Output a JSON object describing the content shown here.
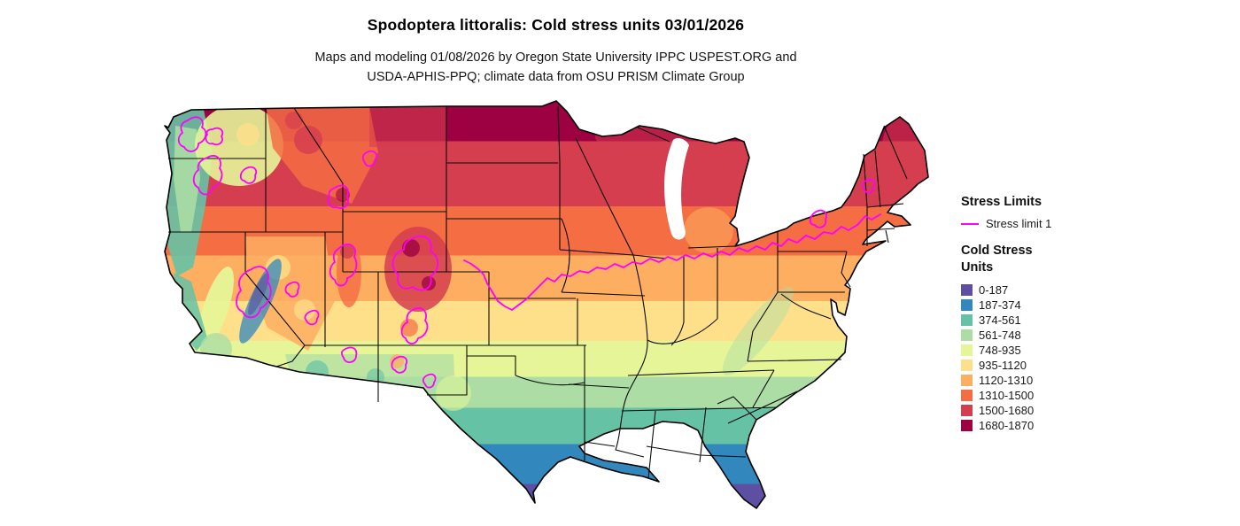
{
  "title": "Spodoptera littoralis: Cold stress units 03/01/2026",
  "subtitle": {
    "lines": [
      "Maps and modeling 01/08/2026 by Oregon State University IPPC USPEST.ORG and",
      "USDA-APHIS-PPQ; climate data from OSU PRISM Climate Group"
    ]
  },
  "map": {
    "region": "Continental United States",
    "kind": "raster map of accumulated cold stress units with state boundaries",
    "contour_color": "#ff00ff"
  },
  "legend": {
    "stress_limits": {
      "heading": "Stress Limits",
      "items": [
        {
          "label": "Stress limit 1",
          "color": "#ff00ff"
        }
      ]
    },
    "cold_stress_units": {
      "heading": "Cold Stress Units",
      "classes": [
        {
          "range": "0-187",
          "color": "#5e4fa2"
        },
        {
          "range": "187-374",
          "color": "#3288bd"
        },
        {
          "range": "374-561",
          "color": "#66c2a5"
        },
        {
          "range": "561-748",
          "color": "#abdda4"
        },
        {
          "range": "748-935",
          "color": "#e6f598"
        },
        {
          "range": "935-1120",
          "color": "#fee08b"
        },
        {
          "range": "1120-1310",
          "color": "#fdae61"
        },
        {
          "range": "1310-1500",
          "color": "#f46d43"
        },
        {
          "range": "1500-1680",
          "color": "#d53e4f"
        },
        {
          "range": "1680-1870",
          "color": "#9e0142"
        }
      ]
    }
  }
}
